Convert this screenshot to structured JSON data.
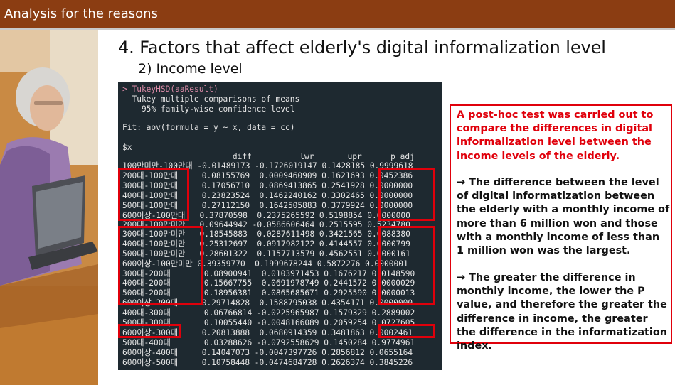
{
  "header": {
    "title": "Analysis for the reasons"
  },
  "slide": {
    "title": "4. Factors that affect elderly's digital informalization level",
    "subtitle": "2) Income level"
  },
  "console": {
    "lines": [
      "> TukeyHSD(aaResult)",
      "  Tukey multiple comparisons of means",
      "    95% family-wise confidence level",
      "",
      "Fit: aov(formula = y ~ x, data = cc)",
      "",
      "$x",
      "                       diff          lwr       upr      p adj",
      "100만미만-100만대 -0.01489173 -0.1726019147 0.1428185 0.9999618",
      "200대-100만대     0.08155769  0.0009460909 0.1621693 0.0452386",
      "300대-100만대     0.17056710  0.0869413865 0.2541928 0.0000000",
      "400대-100만대     0.23823524  0.1462240162 0.3302465 0.0000000",
      "500대-100만대     0.27112150  0.1642505883 0.3779924 0.0000000",
      "600이상-100만대   0.37870598  0.2375265592 0.5198854 0.0000000",
      "200대-100만미만   0.09644942 -0.0586606464 0.2515595 0.5234780",
      "300대-100만미만   0.18545883  0.0287611498 0.3421565 0.0088380",
      "400대-100만미만   0.25312697  0.0917982122 0.4144557 0.0000799",
      "500대-100만미만   0.28601322  0.1157713579 0.4562551 0.0000161",
      "600이상-100만미만 0.39359770  0.1999678244 0.5872276 0.0000001",
      "300대-200대       0.08900941  0.0103971453 0.1676217 0.0148590",
      "400대-200대       0.15667755  0.0691978749 0.2441572 0.0000029",
      "500대-200대       0.18956381  0.0865685671 0.2925590 0.0000013",
      "600이상-200대     0.29714828  0.1588795038 0.4354171 0.0000000",
      "400대-300대       0.06766814 -0.0225965987 0.1579329 0.2889002",
      "500대-300대       0.10055440 -0.0048166089 0.2059254 0.0727605",
      "600이상-300대     0.20813888  0.0680914359 0.3481863 0.0002461",
      "500대-400대       0.03288626 -0.0792558629 0.1450284 0.9774961",
      "600이상-400대     0.14047073 -0.0047397726 0.2856812 0.0655164",
      "600이상-500대     0.10758448 -0.0474684728 0.2626374 0.3845226"
    ]
  },
  "notes": {
    "summary": "A post-hoc test was carried out to compare the differences in digital informalization level between the income levels of the elderly.",
    "point1": "→ The difference between the level of digital informatization between the elderly with a monthly income of more than 6 million won and those with a monthly income of less than 1 million won was the largest.",
    "point2": "→ The greater the difference in monthly income, the lower the P value, and therefore the greater the difference in income, the greater the difference in the informatization index."
  },
  "colors": {
    "header": "#8b3d12",
    "highlight": "#e0000b",
    "console_bg": "#1e2930"
  },
  "icons": {
    "photo": "elderly-woman-at-laptop-photo"
  }
}
